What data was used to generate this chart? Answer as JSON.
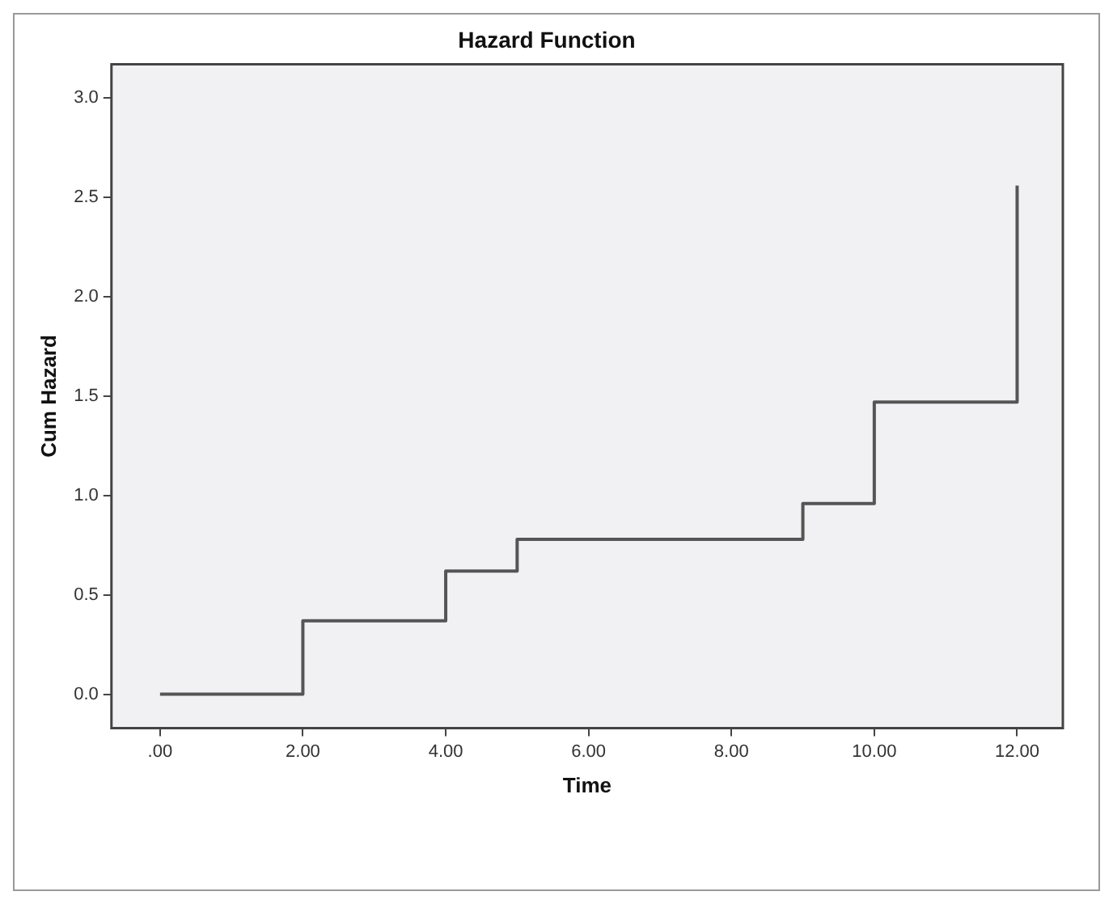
{
  "chart_data": {
    "type": "step",
    "title": "Hazard Function",
    "xlabel": "Time",
    "ylabel": "Cum Hazard",
    "x": [
      0,
      2,
      4,
      5,
      9,
      10,
      12
    ],
    "series": [
      {
        "color": "#555555",
        "values": [
          0,
          0.37,
          0.62,
          0.78,
          0.96,
          1.47,
          2.56
        ]
      }
    ],
    "xlim": [
      -0.68,
      12.64
    ],
    "ylim": [
      -0.17,
      3.17
    ],
    "xticks": [
      {
        "value": 0,
        "label": ".00"
      },
      {
        "value": 2,
        "label": "2.00"
      },
      {
        "value": 4,
        "label": "4.00"
      },
      {
        "value": 6,
        "label": "6.00"
      },
      {
        "value": 8,
        "label": "8.00"
      },
      {
        "value": 10,
        "label": "10.00"
      },
      {
        "value": 12,
        "label": "12.00"
      }
    ],
    "yticks": [
      {
        "value": 0,
        "label": "0.0"
      },
      {
        "value": 0.5,
        "label": "0.5"
      },
      {
        "value": 1,
        "label": "1.0"
      },
      {
        "value": 1.5,
        "label": "1.5"
      },
      {
        "value": 2,
        "label": "2.0"
      },
      {
        "value": 2.5,
        "label": "2.5"
      },
      {
        "value": 3,
        "label": "3.0"
      }
    ],
    "legend": false,
    "marker": "none",
    "line_style": "solid"
  }
}
